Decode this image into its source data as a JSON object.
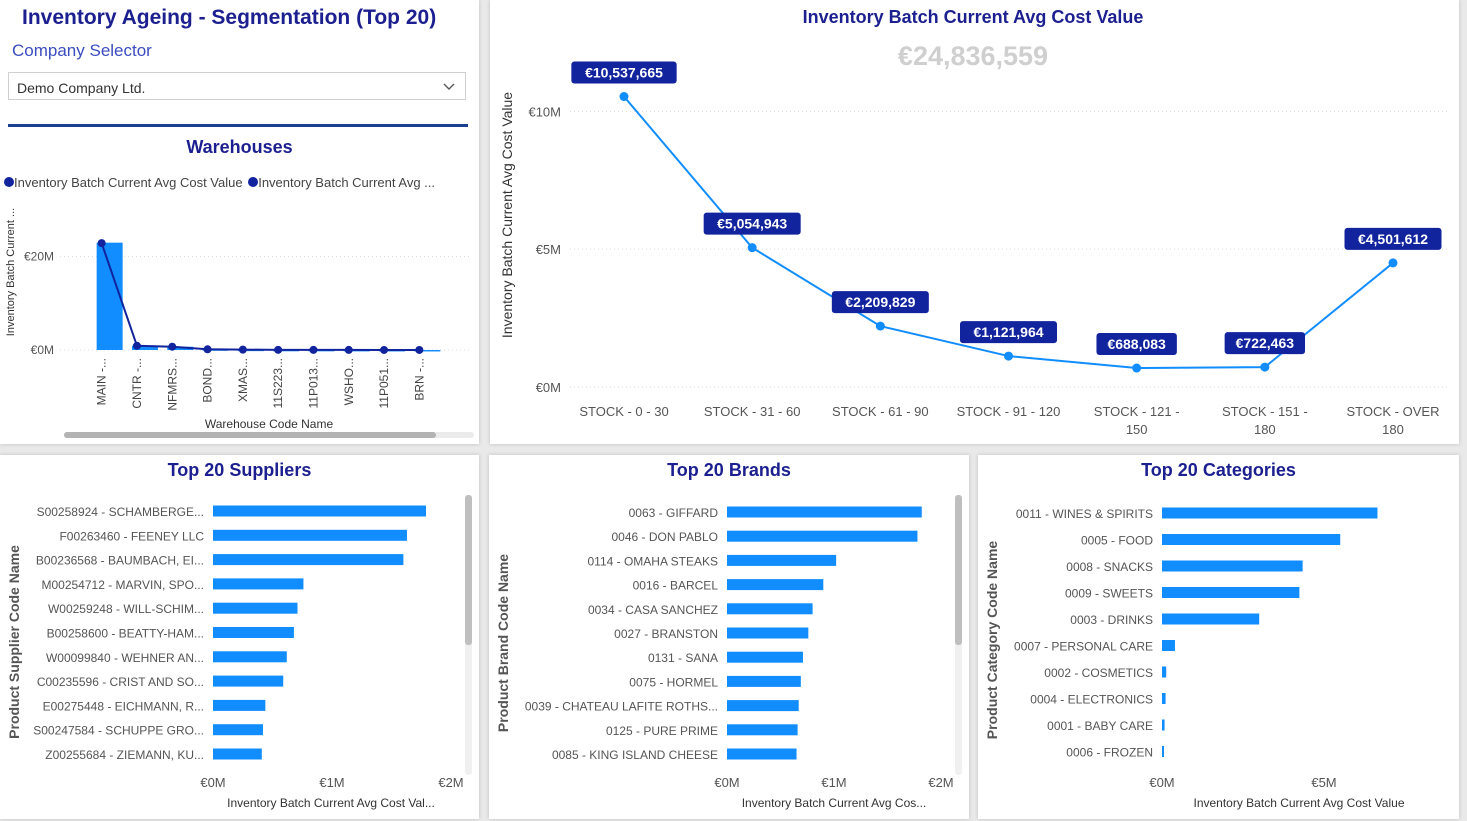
{
  "colors": {
    "title": "#1b1f8f",
    "bar": "#118DFF",
    "line": "#118DFF",
    "line_dark": "#12239E",
    "label_bg": "#12239E"
  },
  "header": {
    "title": "Inventory Ageing - Segmentation (Top 20)",
    "selector_label": "Company Selector",
    "selector_value": "Demo Company Ltd."
  },
  "chart_data": [
    {
      "id": "warehouses",
      "type": "bar",
      "title": "Warehouses",
      "legend": [
        "Inventory Batch Current Avg Cost Value",
        "Inventory Batch Current Avg ..."
      ],
      "xlabel": "Warehouse Code Name",
      "ylabel": "Inventory Batch Current ...",
      "ylim": [
        0,
        30000000
      ],
      "yticks": [
        {
          "v": 0,
          "label": "€0M"
        },
        {
          "v": 20000000,
          "label": "€20M"
        }
      ],
      "categories": [
        "MAIN -...",
        "CNTR -...",
        "NFMRS...",
        "BOND...",
        "XMAS...",
        "11S223...",
        "11P013...",
        "WSHO...",
        "11P051...",
        "BRN -..."
      ],
      "series": [
        {
          "name": "Inventory Batch Current Avg Cost Value",
          "type": "bar",
          "values": [
            23000000,
            900000,
            700000,
            150000,
            80000,
            40000,
            30000,
            20000,
            10000,
            5000
          ]
        },
        {
          "name": "Inventory Batch Current Avg ...",
          "type": "line",
          "values": [
            22900000,
            900000,
            700000,
            150000,
            80000,
            40000,
            30000,
            20000,
            10000,
            5000
          ]
        }
      ]
    },
    {
      "id": "ageing",
      "type": "line",
      "title": "Inventory Batch Current Avg Cost Value",
      "total_label": "€24,836,559",
      "ylabel": "Inventory Batch Current Avg Cost Value",
      "ylim": [
        0,
        11500000
      ],
      "yticks": [
        {
          "v": 0,
          "label": "€0M"
        },
        {
          "v": 5000000,
          "label": "€5M"
        },
        {
          "v": 10000000,
          "label": "€10M"
        }
      ],
      "categories": [
        [
          "STOCK - 0 - 30"
        ],
        [
          "STOCK - 31 - 60"
        ],
        [
          "STOCK - 61 - 90"
        ],
        [
          "STOCK - 91 - 120"
        ],
        [
          "STOCK - 121 -",
          "150"
        ],
        [
          "STOCK - 151 -",
          "180"
        ],
        [
          "STOCK - OVER",
          "180"
        ]
      ],
      "values": [
        10537665,
        5054943,
        2209829,
        1121964,
        688083,
        722463,
        4501612
      ],
      "data_labels": [
        "€10,537,665",
        "€5,054,943",
        "€2,209,829",
        "€1,121,964",
        "€688,083",
        "€722,463",
        "€4,501,612"
      ]
    },
    {
      "id": "suppliers",
      "type": "bar",
      "orientation": "horizontal",
      "title": "Top 20 Suppliers",
      "xlabel": "Inventory Batch Current Avg Cost Val...",
      "ylabel": "Product Supplier Code Name",
      "xlim": [
        0,
        2000000
      ],
      "xticks": [
        {
          "v": 0,
          "label": "€0M"
        },
        {
          "v": 1000000,
          "label": "€1M"
        },
        {
          "v": 2000000,
          "label": "€2M"
        }
      ],
      "categories": [
        "S00258924 - SCHAMBERGE...",
        "F00263460 - FEENEY LLC",
        "B00236568 - BAUMBACH, EI...",
        "M00254712 - MARVIN, SPO...",
        "W00259248 - WILL-SCHIM...",
        "B00258600 - BEATTY-HAM...",
        "W00099840 - WEHNER AN...",
        "C00235596 - CRIST AND SO...",
        "E00275448 - EICHMANN, R...",
        "S00247584 - SCHUPPE GRO...",
        "Z00255684 - ZIEMANN, KU..."
      ],
      "values": [
        1790000,
        1630000,
        1600000,
        760000,
        710000,
        680000,
        620000,
        590000,
        440000,
        420000,
        410000
      ]
    },
    {
      "id": "brands",
      "type": "bar",
      "orientation": "horizontal",
      "title": "Top 20 Brands",
      "xlabel": "Inventory Batch Current Avg Cos...",
      "ylabel": "Product Brand Code Name",
      "xlim": [
        0,
        2000000
      ],
      "xticks": [
        {
          "v": 0,
          "label": "€0M"
        },
        {
          "v": 1000000,
          "label": "€1M"
        },
        {
          "v": 2000000,
          "label": "€2M"
        }
      ],
      "categories": [
        "0063 - GIFFARD",
        "0046 - DON PABLO",
        "0114 - OMAHA STEAKS",
        "0016 - BARCEL",
        "0034 - CASA SANCHEZ",
        "0027 - BRANSTON",
        "0131 - SANA",
        "0075 - HORMEL",
        "0039 - CHATEAU LAFITE ROTHS...",
        "0125 - PURE PRIME",
        "0085 - KING ISLAND CHEESE"
      ],
      "values": [
        1820000,
        1780000,
        1020000,
        900000,
        800000,
        760000,
        710000,
        690000,
        670000,
        660000,
        650000
      ]
    },
    {
      "id": "categories",
      "type": "bar",
      "orientation": "horizontal",
      "title": "Top 20 Categories",
      "xlabel": "Inventory Batch Current Avg Cost Value",
      "ylabel": "Product Category Code Name",
      "xlim": [
        0,
        7500000
      ],
      "xticks": [
        {
          "v": 0,
          "label": "€0M"
        },
        {
          "v": 5000000,
          "label": "€5M"
        }
      ],
      "categories": [
        "0011 - WINES & SPIRITS",
        "0005 - FOOD",
        "0008 - SNACKS",
        "0009 - SWEETS",
        "0003 - DRINKS",
        "0007 - PERSONAL CARE",
        "0002 - COSMETICS",
        "0004 - ELECTRONICS",
        "0001 - BABY CARE",
        "0006 - FROZEN"
      ],
      "values": [
        6650000,
        5500000,
        4340000,
        4240000,
        3000000,
        400000,
        130000,
        110000,
        80000,
        40000
      ]
    }
  ]
}
